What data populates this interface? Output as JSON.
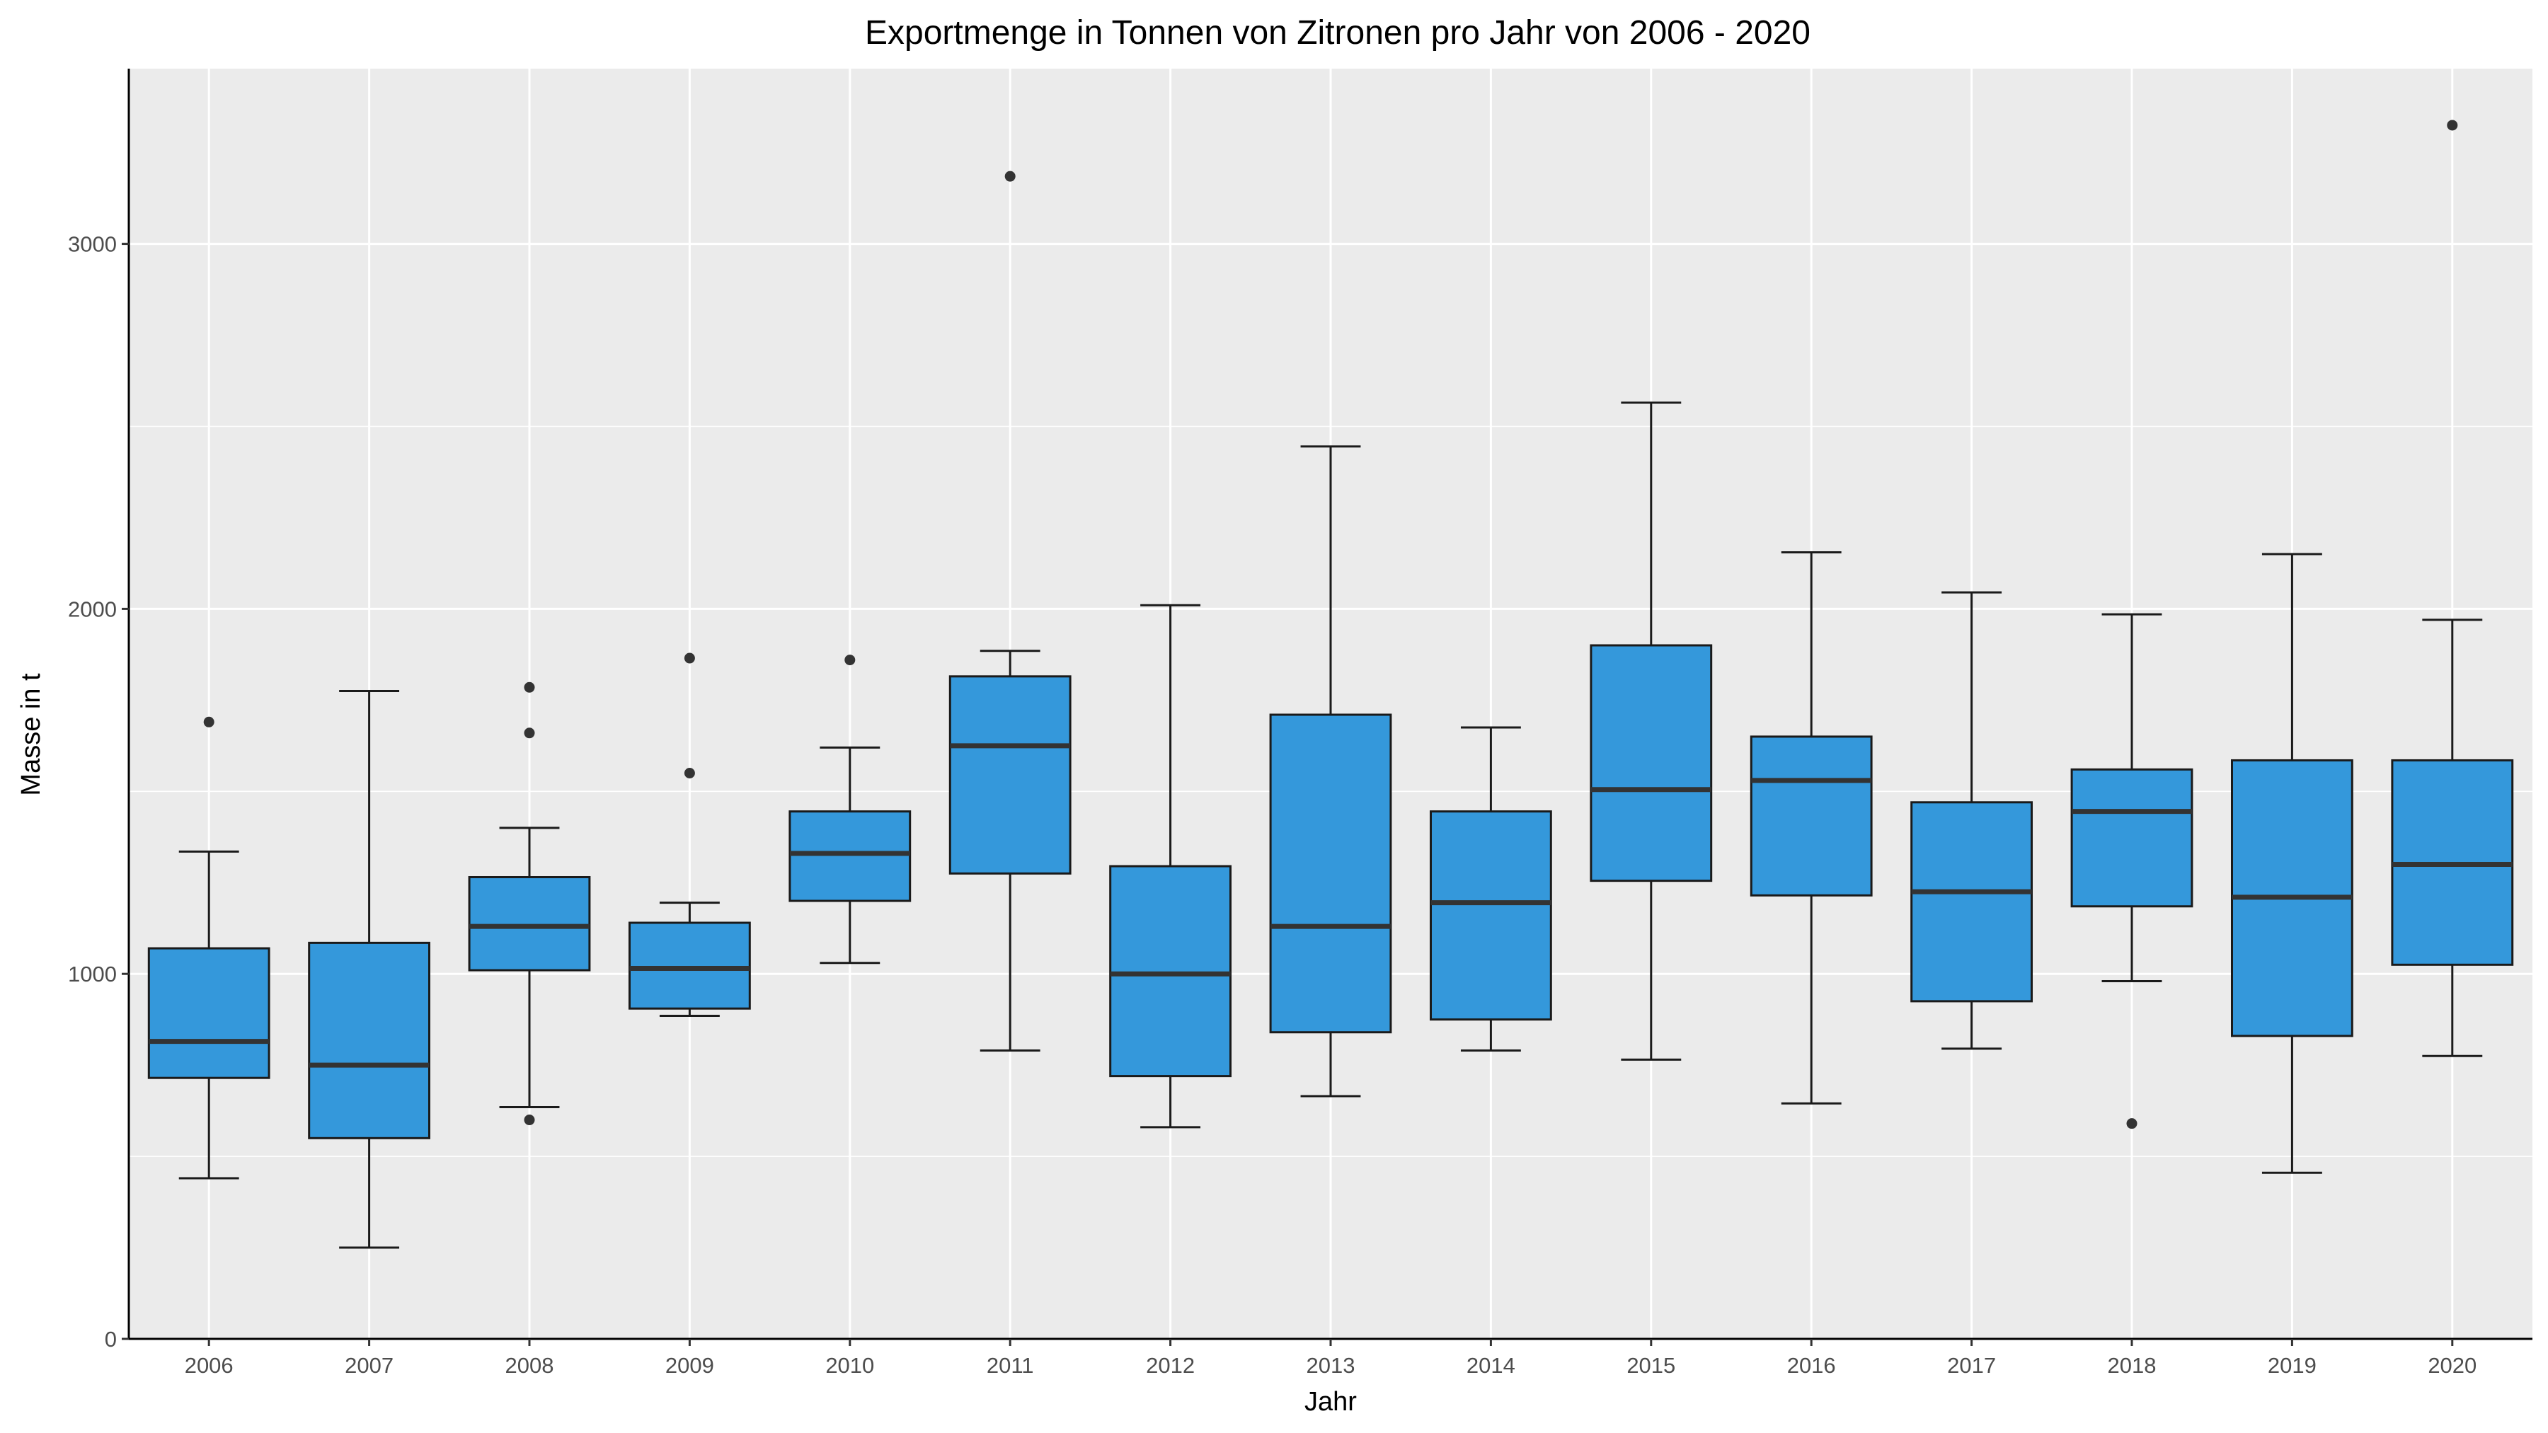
{
  "chart_data": {
    "type": "box",
    "title": "Exportmenge in Tonnen von Zitronen pro Jahr von 2006 - 2020",
    "xlabel": "Jahr",
    "ylabel": "Masse in t",
    "categories": [
      "2006",
      "2007",
      "2008",
      "2009",
      "2010",
      "2011",
      "2012",
      "2013",
      "2014",
      "2015",
      "2016",
      "2017",
      "2018",
      "2019",
      "2020"
    ],
    "y_ticks": [
      0,
      1000,
      2000,
      3000
    ],
    "y_tick_labels": [
      "0",
      "1000",
      "2000",
      "3000"
    ],
    "ylim": [
      0,
      3480
    ],
    "grid": true,
    "legend": "none",
    "boxes": [
      {
        "category": "2006",
        "whisker_low": 440,
        "q1": 715,
        "median": 815,
        "q3": 1070,
        "whisker_high": 1335,
        "outliers": [
          1690
        ]
      },
      {
        "category": "2007",
        "whisker_low": 250,
        "q1": 550,
        "median": 750,
        "q3": 1085,
        "whisker_high": 1775,
        "outliers": []
      },
      {
        "category": "2008",
        "whisker_low": 635,
        "q1": 1010,
        "median": 1130,
        "q3": 1265,
        "whisker_high": 1400,
        "outliers": [
          1660,
          1785,
          600
        ]
      },
      {
        "category": "2009",
        "whisker_low": 885,
        "q1": 905,
        "median": 1015,
        "q3": 1140,
        "whisker_high": 1195,
        "outliers": [
          1550,
          1865
        ]
      },
      {
        "category": "2010",
        "whisker_low": 1030,
        "q1": 1200,
        "median": 1330,
        "q3": 1445,
        "whisker_high": 1620,
        "outliers": [
          1860
        ]
      },
      {
        "category": "2011",
        "whisker_low": 790,
        "q1": 1275,
        "median": 1625,
        "q3": 1815,
        "whisker_high": 1885,
        "outliers": [
          3185
        ]
      },
      {
        "category": "2012",
        "whisker_low": 580,
        "q1": 720,
        "median": 1000,
        "q3": 1295,
        "whisker_high": 2010,
        "outliers": []
      },
      {
        "category": "2013",
        "whisker_low": 665,
        "q1": 840,
        "median": 1130,
        "q3": 1710,
        "whisker_high": 2445,
        "outliers": []
      },
      {
        "category": "2014",
        "whisker_low": 790,
        "q1": 875,
        "median": 1195,
        "q3": 1445,
        "whisker_high": 1675,
        "outliers": []
      },
      {
        "category": "2015",
        "whisker_low": 765,
        "q1": 1255,
        "median": 1505,
        "q3": 1900,
        "whisker_high": 2565,
        "outliers": []
      },
      {
        "category": "2016",
        "whisker_low": 645,
        "q1": 1215,
        "median": 1530,
        "q3": 1650,
        "whisker_high": 2155,
        "outliers": []
      },
      {
        "category": "2017",
        "whisker_low": 795,
        "q1": 925,
        "median": 1225,
        "q3": 1470,
        "whisker_high": 2045,
        "outliers": []
      },
      {
        "category": "2018",
        "whisker_low": 980,
        "q1": 1185,
        "median": 1445,
        "q3": 1560,
        "whisker_high": 1985,
        "outliers": [
          590
        ]
      },
      {
        "category": "2019",
        "whisker_low": 455,
        "q1": 830,
        "median": 1210,
        "q3": 1585,
        "whisker_high": 2150,
        "outliers": []
      },
      {
        "category": "2020",
        "whisker_low": 775,
        "q1": 1025,
        "median": 1300,
        "q3": 1585,
        "whisker_high": 1970,
        "outliers": [
          3325
        ]
      }
    ],
    "colors": {
      "box_fill": "#3498db",
      "box_border": "#1a1a1a",
      "median": "#333333",
      "whisker": "#1a1a1a",
      "outlier": "#333333",
      "panel_background": "#ebebeb",
      "gridline": "#ffffff",
      "axis_line": "#000000",
      "tick_label": "#4d4d4d"
    }
  }
}
